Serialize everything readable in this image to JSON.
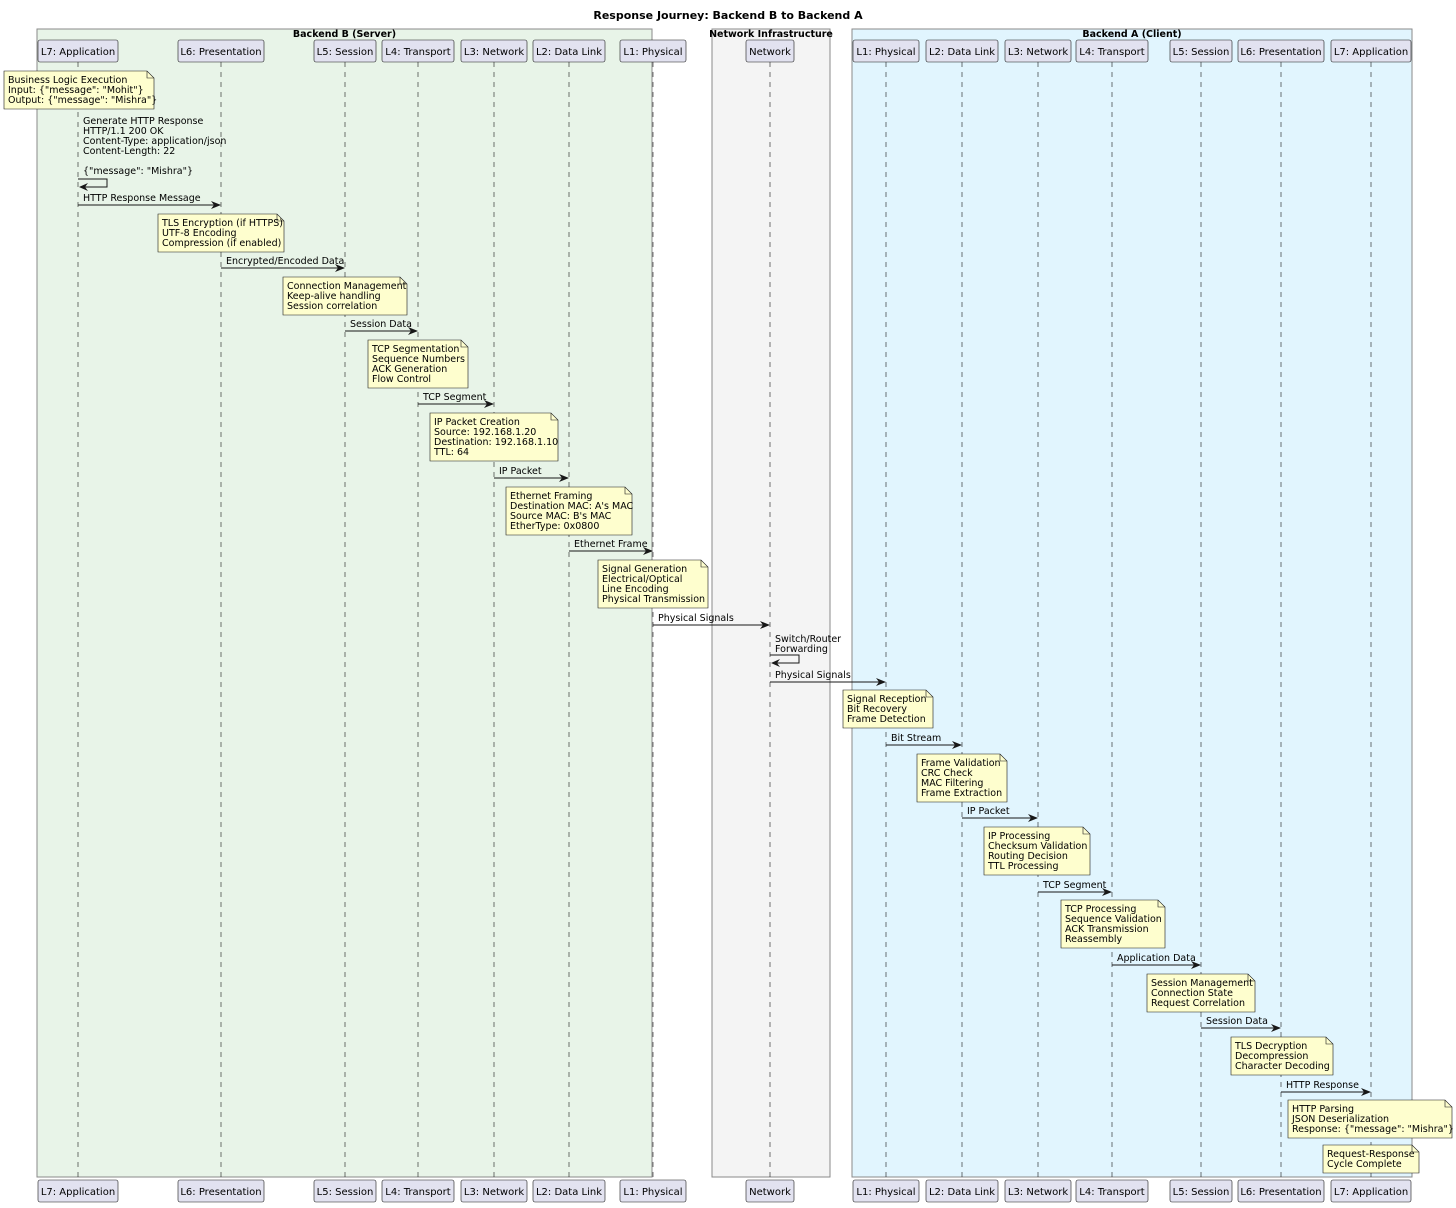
{
  "title": "Response Journey: Backend B to Backend A",
  "groups": [
    {
      "id": "b",
      "label": "Backend B (Server)",
      "fill": "#e8f4e8"
    },
    {
      "id": "n",
      "label": "Network Infrastructure",
      "fill": "#f4f4f4"
    },
    {
      "id": "a",
      "label": "Backend A (Client)",
      "fill": "#e1f5fe"
    }
  ],
  "participants": [
    {
      "id": "b7",
      "label": "L7: Application"
    },
    {
      "id": "b6",
      "label": "L6: Presentation"
    },
    {
      "id": "b5",
      "label": "L5: Session"
    },
    {
      "id": "b4",
      "label": "L4: Transport"
    },
    {
      "id": "b3",
      "label": "L3: Network"
    },
    {
      "id": "b2",
      "label": "L2: Data Link"
    },
    {
      "id": "b1",
      "label": "L1: Physical"
    },
    {
      "id": "net",
      "label": "Network"
    },
    {
      "id": "a1",
      "label": "L1: Physical"
    },
    {
      "id": "a2",
      "label": "L2: Data Link"
    },
    {
      "id": "a3",
      "label": "L3: Network"
    },
    {
      "id": "a4",
      "label": "L4: Transport"
    },
    {
      "id": "a5",
      "label": "L5: Session"
    },
    {
      "id": "a6",
      "label": "L6: Presentation"
    },
    {
      "id": "a7",
      "label": "L7: Application"
    }
  ],
  "notes": [
    {
      "lines": [
        "Business Logic Execution",
        "Input: {\"message\": \"Mohit\"}",
        "Output: {\"message\": \"Mishra\"}"
      ]
    },
    {
      "lines": [
        "TLS Encryption (if HTTPS)",
        "UTF-8 Encoding",
        "Compression (if enabled)"
      ]
    },
    {
      "lines": [
        "Connection Management",
        "Keep-alive handling",
        "Session correlation"
      ]
    },
    {
      "lines": [
        "TCP Segmentation",
        "Sequence Numbers",
        "ACK Generation",
        "Flow Control"
      ]
    },
    {
      "lines": [
        "IP Packet Creation",
        "Source: 192.168.1.20",
        "Destination: 192.168.1.10",
        "TTL: 64"
      ]
    },
    {
      "lines": [
        "Ethernet Framing",
        "Destination MAC: A's MAC",
        "Source MAC: B's MAC",
        "EtherType: 0x0800"
      ]
    },
    {
      "lines": [
        "Signal Generation",
        "Electrical/Optical",
        "Line Encoding",
        "Physical Transmission"
      ]
    },
    {
      "lines": [
        "Signal Reception",
        "Bit Recovery",
        "Frame Detection"
      ]
    },
    {
      "lines": [
        "Frame Validation",
        "CRC Check",
        "MAC Filtering",
        "Frame Extraction"
      ]
    },
    {
      "lines": [
        "IP Processing",
        "Checksum Validation",
        "Routing Decision",
        "TTL Processing"
      ]
    },
    {
      "lines": [
        "TCP Processing",
        "Sequence Validation",
        "ACK Transmission",
        "Reassembly"
      ]
    },
    {
      "lines": [
        "Session Management",
        "Connection State",
        "Request Correlation"
      ]
    },
    {
      "lines": [
        "TLS Decryption",
        "Decompression",
        "Character Decoding"
      ]
    },
    {
      "lines": [
        "HTTP Parsing",
        "JSON Deserialization",
        "Response: {\"message\": \"Mishra\"}"
      ]
    },
    {
      "lines": [
        "Request-Response",
        "Cycle Complete"
      ]
    }
  ],
  "self_messages": [
    {
      "lines": [
        "Generate HTTP Response",
        "HTTP/1.1 200 OK",
        "Content-Type: application/json",
        "Content-Length: 22",
        "",
        "{\"message\": \"Mishra\"}"
      ]
    },
    {
      "lines": [
        "Switch/Router",
        "Forwarding"
      ]
    }
  ],
  "messages": [
    {
      "label": "HTTP Response Message"
    },
    {
      "label": "Encrypted/Encoded Data"
    },
    {
      "label": "Session Data"
    },
    {
      "label": "TCP Segment"
    },
    {
      "label": "IP Packet"
    },
    {
      "label": "Ethernet Frame"
    },
    {
      "label": "Physical Signals"
    },
    {
      "label": "Physical Signals"
    },
    {
      "label": "Bit Stream"
    },
    {
      "label": "IP Packet"
    },
    {
      "label": "TCP Segment"
    },
    {
      "label": "Application Data"
    },
    {
      "label": "Session Data"
    },
    {
      "label": "HTTP Response"
    }
  ],
  "colors": {
    "note_fill": "#fefece",
    "participant_fill": "#e2e2f0",
    "line": "#181818"
  }
}
